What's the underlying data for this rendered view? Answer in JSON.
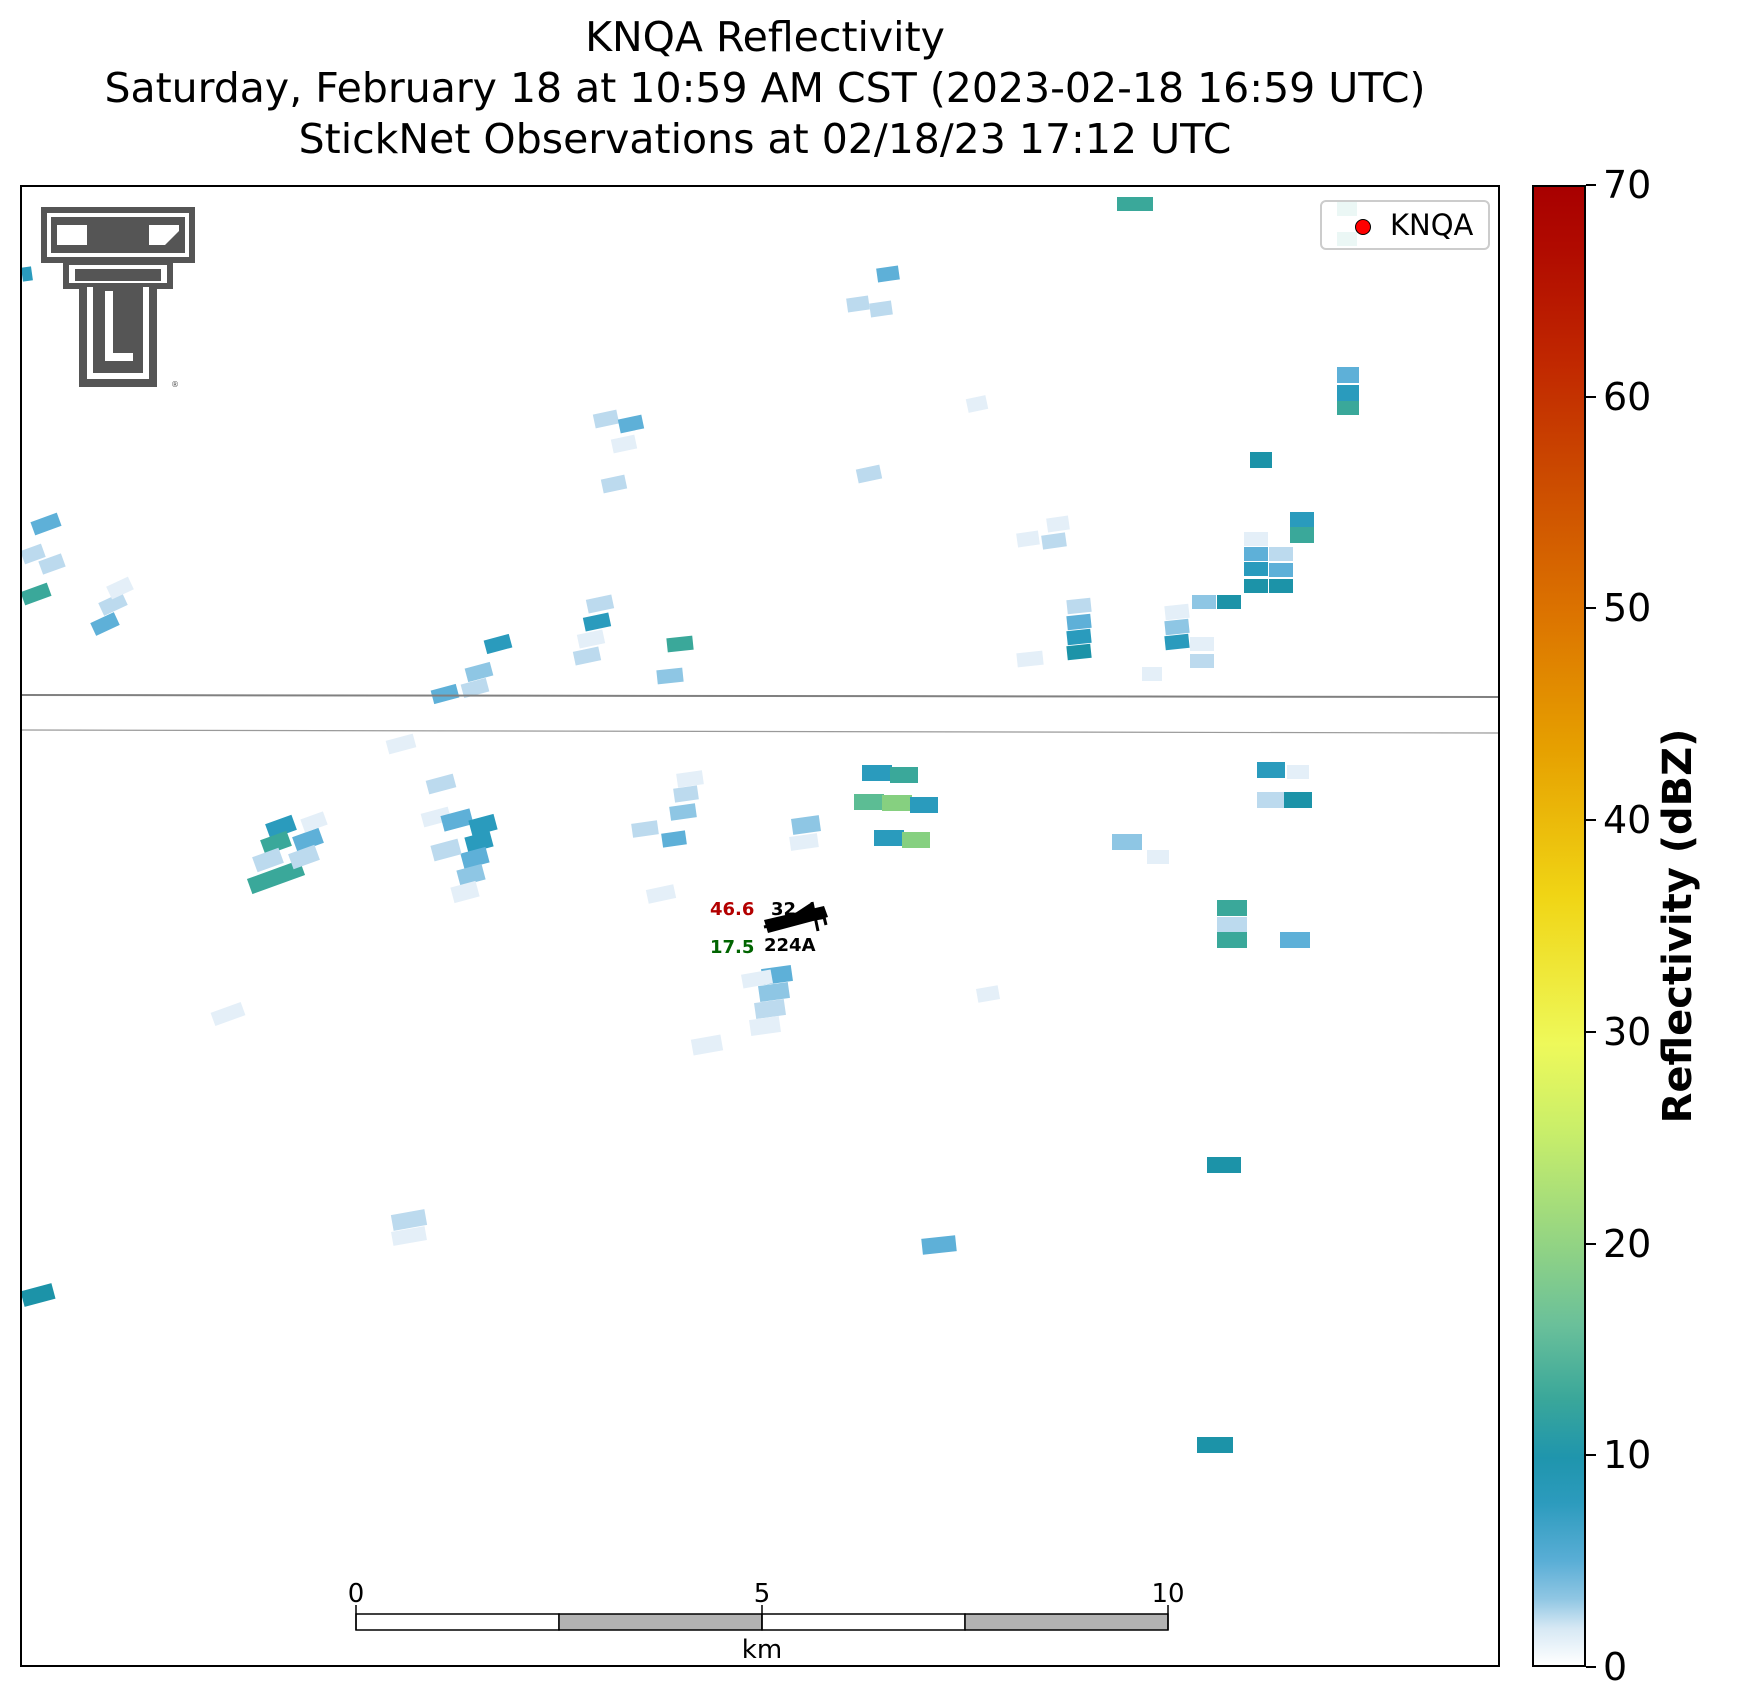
{
  "title": {
    "line1": "KNQA Reflectivity",
    "line2": "Saturday, February 18 at 10:59 AM CST (2023-02-18 16:59 UTC)",
    "line3": "StickNet Observations at 02/18/23 17:12 UTC"
  },
  "legend": {
    "marker_color": "#ff0000",
    "label": "KNQA"
  },
  "colorbar": {
    "title": "Reflectivity (dBZ)",
    "min": 0,
    "max": 70,
    "ticks": [
      "0",
      "10",
      "20",
      "30",
      "40",
      "50",
      "60",
      "70"
    ]
  },
  "scale_bar": {
    "unit": "km",
    "labels": [
      "0",
      "5",
      "10"
    ],
    "max_km": 10
  },
  "station_obs": {
    "temperature": "46.6",
    "dewpoint": "17.5",
    "pressure": "32",
    "station_id": "224A",
    "temp_color": "#b30000",
    "dew_color": "#006400"
  },
  "logo": {
    "name": "double-t-logo"
  }
}
